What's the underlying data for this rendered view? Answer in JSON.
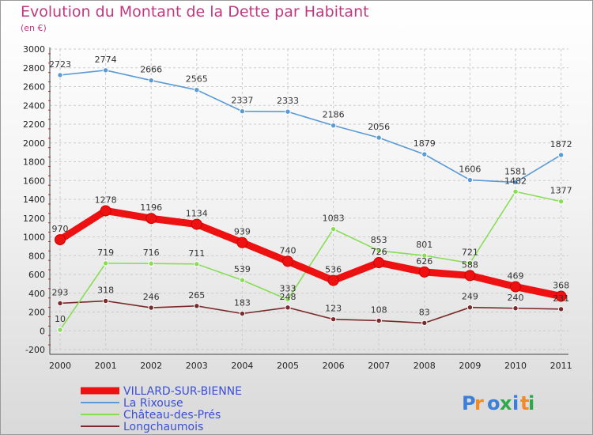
{
  "title": "Evolution du Montant de la Dette par Habitant",
  "subtitle": "(en €)",
  "logo": "Proxiti",
  "chart_data": {
    "type": "line",
    "title": "Evolution du Montant de la Dette par Habitant",
    "subtitle": "(en €)",
    "x": [
      "2000",
      "2001",
      "2002",
      "2003",
      "2004",
      "2005",
      "2006",
      "2007",
      "2008",
      "2009",
      "2010",
      "2011"
    ],
    "ylim": [
      -200,
      3000
    ],
    "yticks": [
      -200,
      0,
      200,
      400,
      600,
      800,
      1000,
      1200,
      1400,
      1600,
      1800,
      2000,
      2200,
      2400,
      2600,
      2800,
      3000
    ],
    "grid": true,
    "legend_position": "bottom",
    "series": [
      {
        "name": "VILLARD-SUR-BIENNE",
        "color": "#ee1111",
        "values": [
          970,
          1278,
          1196,
          1134,
          939,
          740,
          536,
          726,
          626,
          588,
          469,
          368
        ]
      },
      {
        "name": "La Rixouse",
        "color": "#5b9bd5",
        "values": [
          2723,
          2774,
          2666,
          2565,
          2337,
          2333,
          2186,
          2056,
          1879,
          1606,
          1581,
          1872
        ]
      },
      {
        "name": "Château-des-Prés",
        "color": "#88dd55",
        "values": [
          10,
          719,
          716,
          711,
          539,
          333,
          1083,
          853,
          801,
          721,
          1482,
          1377
        ]
      },
      {
        "name": "Longchaumois",
        "color": "#7a2a2a",
        "values": [
          293,
          318,
          246,
          265,
          183,
          248,
          123,
          108,
          83,
          249,
          240,
          231
        ]
      }
    ]
  }
}
